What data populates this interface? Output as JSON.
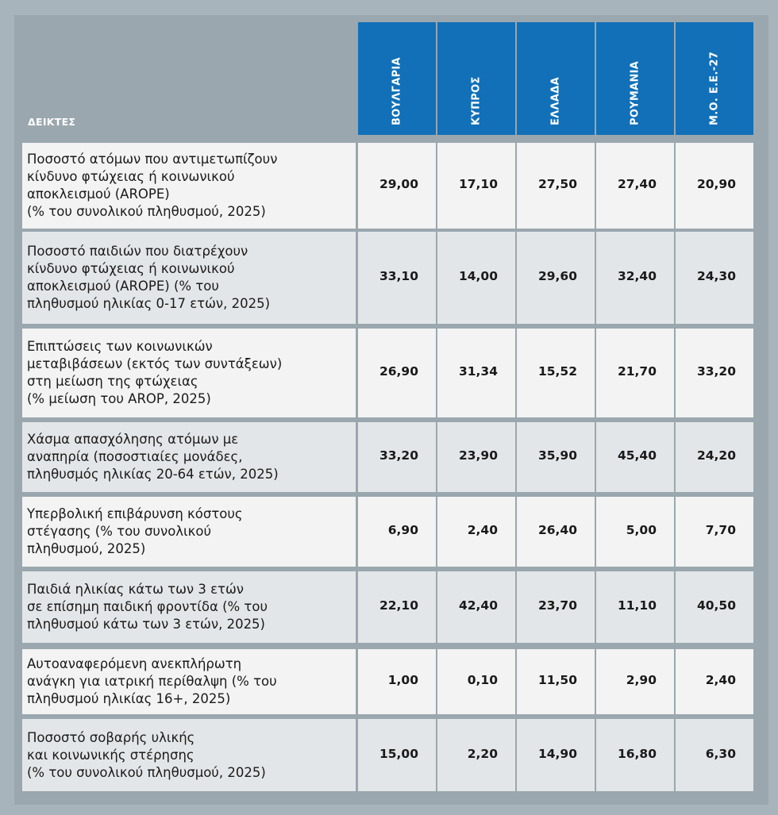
{
  "colors": {
    "background": "#a7b4bb",
    "header_blue": "#1170b8",
    "row_light": "#f3f3f3",
    "row_alt": "#e3e6e8"
  },
  "chart_data": {
    "type": "table",
    "header_label": "ΔΕΙΚΤΕΣ",
    "columns": [
      "ΒΟΥΛΓΑΡΙΑ",
      "ΚΥΠΡΟΣ",
      "ΕΛΛΑΔΑ",
      "ΡΟΥΜΑΝΙΑ",
      "Μ.Ο. Ε.Ε.-27"
    ],
    "rows": [
      {
        "label": "Ποσοστό ατόμων που αντιμετωπίζουν\nκίνδυνο φτώχειας ή κοινωνικού\nαποκλεισμού (AROPE)\n(% του συνολικού πληθυσμού, 2025)",
        "values": [
          "29,00",
          "17,10",
          "27,50",
          "27,40",
          "20,90"
        ]
      },
      {
        "label": "Ποσοστό παιδιών που διατρέχουν\nκίνδυνο φτώχειας ή κοινωνικού\nαποκλεισμού (AROPE) (% του\nπληθυσμού ηλικίας 0-17 ετών, 2025)",
        "values": [
          "33,10",
          "14,00",
          "29,60",
          "32,40",
          "24,30"
        ]
      },
      {
        "label": "Επιπτώσεις των κοινωνικών\nμεταβιβάσεων (εκτός των συντάξεων)\nστη μείωση της φτώχειας\n(% μείωση του AROP, 2025)",
        "values": [
          "26,90",
          "31,34",
          "15,52",
          "21,70",
          "33,20"
        ]
      },
      {
        "label": "Χάσμα απασχόλησης ατόμων με\nαναπηρία (ποσοστιαίες μονάδες,\nπληθυσμός ηλικίας 20-64 ετών, 2025)",
        "values": [
          "33,20",
          "23,90",
          "35,90",
          "45,40",
          "24,20"
        ]
      },
      {
        "label": "Υπερβολική επιβάρυνση κόστους\nστέγασης (% του συνολικού\nπληθυσμού, 2025)",
        "values": [
          "6,90",
          "2,40",
          "26,40",
          "5,00",
          "7,70"
        ]
      },
      {
        "label": "Παιδιά ηλικίας κάτω των 3 ετών\nσε επίσημη παιδική φροντίδα (% του\nπληθυσμού κάτω των 3 ετών, 2025)",
        "values": [
          "22,10",
          "42,40",
          "23,70",
          "11,10",
          "40,50"
        ]
      },
      {
        "label": "Αυτοαναφερόμενη ανεκπλήρωτη\nανάγκη για ιατρική περίθαλψη (% του\nπληθυσμού ηλικίας 16+, 2025)",
        "values": [
          "1,00",
          "0,10",
          "11,50",
          "2,90",
          "2,40"
        ]
      },
      {
        "label": "Ποσοστό σοβαρής υλικής\nκαι κοινωνικής στέρησης\n(% του συνολικού πληθυσμού, 2025)",
        "values": [
          "15,00",
          "2,20",
          "14,90",
          "16,80",
          "6,30"
        ]
      }
    ]
  }
}
